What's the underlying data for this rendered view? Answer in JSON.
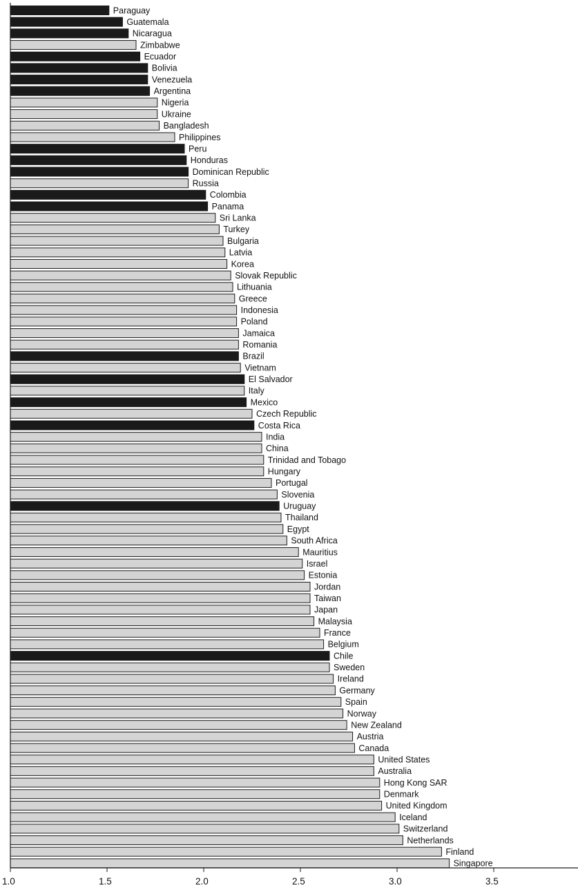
{
  "chart_data": {
    "type": "bar",
    "orientation": "horizontal",
    "title": "",
    "xlabel": "",
    "ylabel": "",
    "xlim": [
      1.0,
      3.95
    ],
    "x_ticks": [
      "1.0",
      "1.5",
      "2.0",
      "2.5",
      "3.0",
      "3.5"
    ],
    "grid": false,
    "colors": {
      "highlight": "#1a1a1a",
      "default": "#d4d4d4",
      "outline": "#1a1a1a"
    },
    "categories": [
      "Paraguay",
      "Guatemala",
      "Nicaragua",
      "Zimbabwe",
      "Ecuador",
      "Bolivia",
      "Venezuela",
      "Argentina",
      "Nigeria",
      "Ukraine",
      "Bangladesh",
      "Philippines",
      "Peru",
      "Honduras",
      "Dominican Republic",
      "Russia",
      "Colombia",
      "Panama",
      "Sri Lanka",
      "Turkey",
      "Bulgaria",
      "Latvia",
      "Korea",
      "Slovak Republic",
      "Lithuania",
      "Greece",
      "Indonesia",
      "Poland",
      "Jamaica",
      "Romania",
      "Brazil",
      "Vietnam",
      "El Salvador",
      "Italy",
      "Mexico",
      "Czech Republic",
      "Costa Rica",
      "India",
      "China",
      "Trinidad and Tobago",
      "Hungary",
      "Portugal",
      "Slovenia",
      "Uruguay",
      "Thailand",
      "Egypt",
      "South Africa",
      "Mauritius",
      "Israel",
      "Estonia",
      "Jordan",
      "Taiwan",
      "Japan",
      "Malaysia",
      "France",
      "Belgium",
      "Chile",
      "Sweden",
      "Ireland",
      "Germany",
      "Spain",
      "Norway",
      "New Zealand",
      "Austria",
      "Canada",
      "United States",
      "Australia",
      "Hong Kong SAR",
      "Denmark",
      "United Kingdom",
      "Iceland",
      "Switzerland",
      "Netherlands",
      "Finland",
      "Singapore"
    ],
    "values": [
      1.51,
      1.58,
      1.61,
      1.65,
      1.67,
      1.71,
      1.71,
      1.72,
      1.76,
      1.76,
      1.77,
      1.85,
      1.9,
      1.91,
      1.92,
      1.92,
      2.01,
      2.02,
      2.06,
      2.08,
      2.1,
      2.11,
      2.12,
      2.14,
      2.15,
      2.16,
      2.17,
      2.17,
      2.18,
      2.18,
      2.18,
      2.19,
      2.21,
      2.21,
      2.22,
      2.25,
      2.26,
      2.3,
      2.3,
      2.31,
      2.31,
      2.35,
      2.38,
      2.39,
      2.4,
      2.41,
      2.43,
      2.49,
      2.51,
      2.52,
      2.55,
      2.55,
      2.55,
      2.57,
      2.6,
      2.62,
      2.65,
      2.65,
      2.67,
      2.68,
      2.71,
      2.72,
      2.74,
      2.77,
      2.78,
      2.88,
      2.88,
      2.91,
      2.91,
      2.92,
      2.99,
      3.01,
      3.03,
      3.23,
      3.27
    ],
    "highlighted": [
      "Paraguay",
      "Guatemala",
      "Nicaragua",
      "Ecuador",
      "Bolivia",
      "Venezuela",
      "Argentina",
      "Peru",
      "Honduras",
      "Dominican Republic",
      "Colombia",
      "Panama",
      "Brazil",
      "El Salvador",
      "Mexico",
      "Costa Rica",
      "Uruguay",
      "Chile"
    ]
  }
}
